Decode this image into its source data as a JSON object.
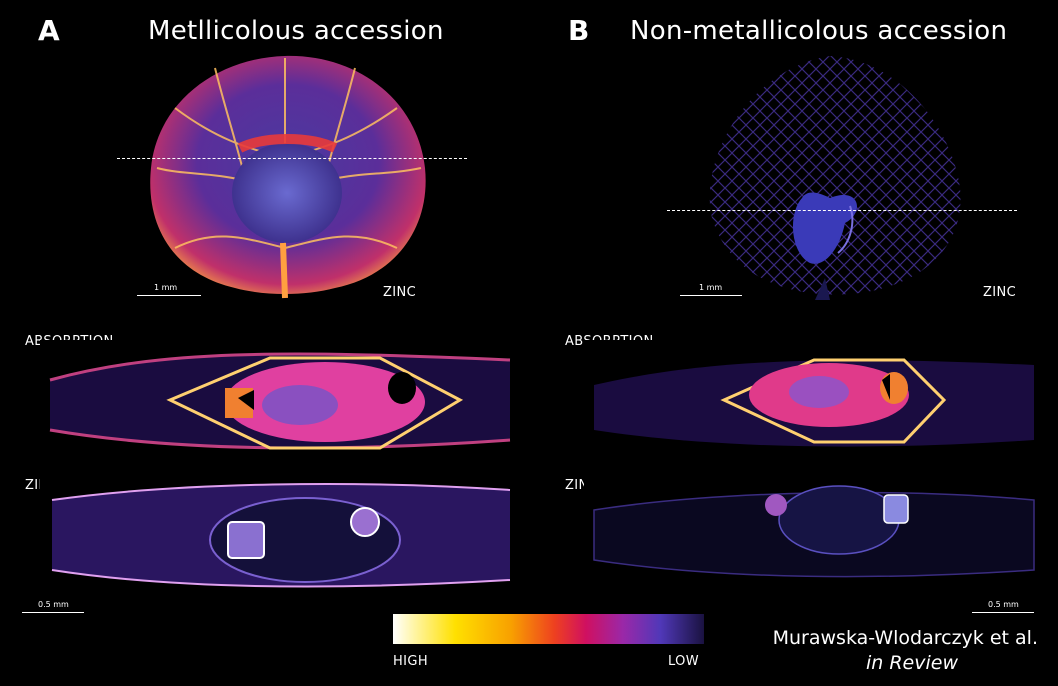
{
  "panels": {
    "A": {
      "letter": "A",
      "title": "Metllicolous accession"
    },
    "B": {
      "letter": "B",
      "title": "Non-metallicolous accession"
    }
  },
  "labels": {
    "zinc": "ZINC",
    "absorption": "ABSORPTION"
  },
  "scale_bars": {
    "top": "1 mm",
    "bottom": "0.5 mm"
  },
  "colorbar": {
    "high": "HIGH",
    "low": "LOW"
  },
  "credit": {
    "authors": "Murawska-Wlodarczyk et al.",
    "status": "in Review"
  },
  "colors": {
    "background": "#000000",
    "veins_hot": "#ffd070",
    "veins_mid": "#e0406a",
    "tissue_low": "#3a2a8a"
  }
}
